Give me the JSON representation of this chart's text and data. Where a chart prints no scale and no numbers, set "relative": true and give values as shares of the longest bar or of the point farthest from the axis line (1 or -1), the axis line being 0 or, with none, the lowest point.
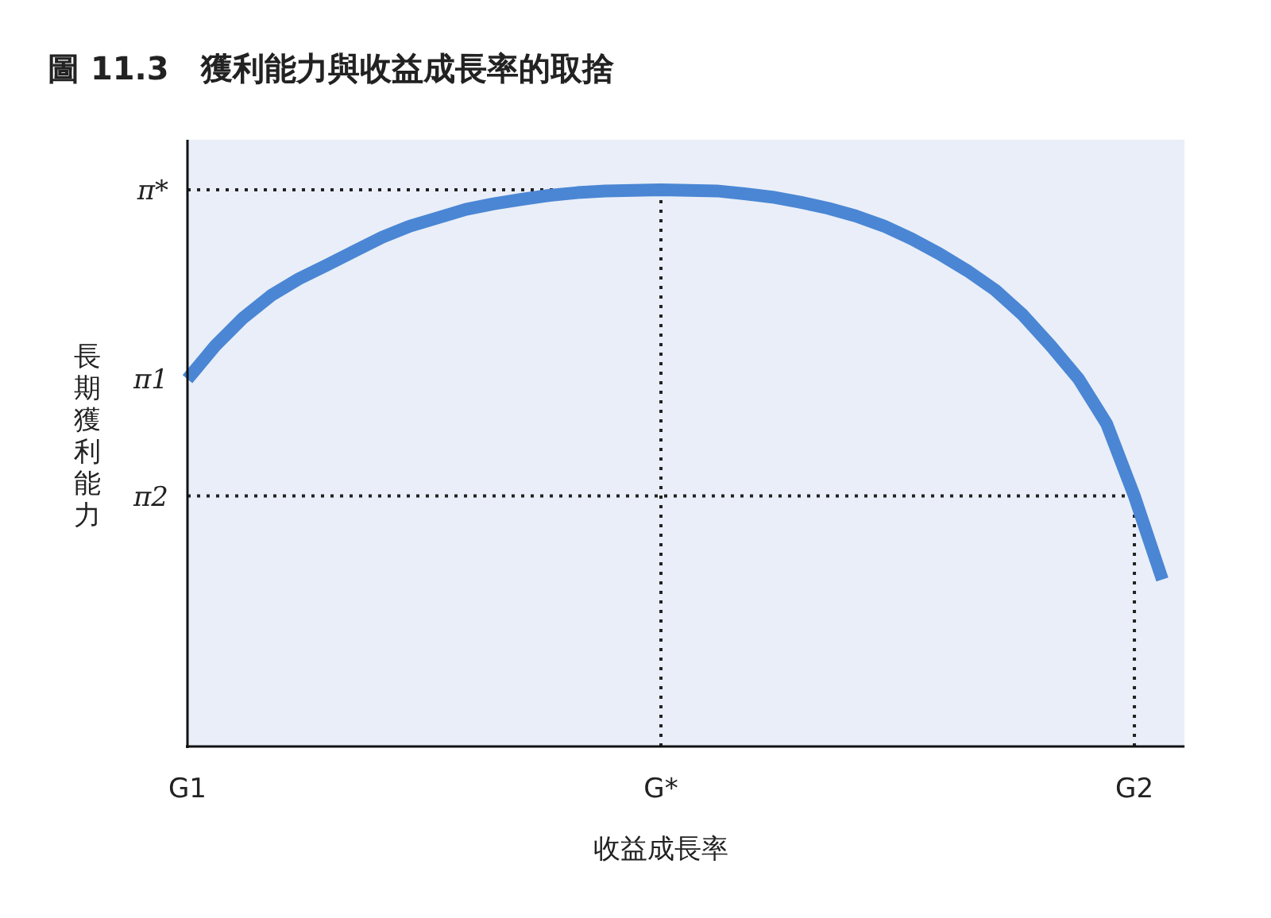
{
  "chart_data": {
    "type": "line",
    "title": "圖 11.3　獲利能力與收益成長率的取捨",
    "xlabel": "收益成長率",
    "ylabel": "長期獲利能力",
    "relative": true,
    "categories": [
      "G1",
      null,
      null,
      null,
      null,
      null,
      null,
      null,
      null,
      null,
      null,
      null,
      null,
      null,
      null,
      null,
      null,
      "G*",
      null,
      null,
      null,
      null,
      null,
      null,
      null,
      null,
      null,
      null,
      null,
      null,
      null,
      null,
      null,
      null,
      "G2",
      null
    ],
    "series": [
      {
        "color": "#4a86d4",
        "values": [
          0.66,
          0.72,
          0.77,
          0.81,
          0.84,
          0.865,
          0.89,
          0.915,
          0.935,
          0.95,
          0.965,
          0.975,
          0.983,
          0.99,
          0.995,
          0.998,
          0.999,
          1.0,
          0.999,
          0.998,
          0.993,
          0.987,
          0.978,
          0.967,
          0.953,
          0.935,
          0.912,
          0.885,
          0.855,
          0.82,
          0.775,
          0.72,
          0.66,
          0.58,
          0.45,
          0.3
        ]
      }
    ],
    "annotations": [
      {
        "text": "π1",
        "x": "G1",
        "y": 0.66
      }
    ],
    "ref_lines": [
      {
        "axis": "y",
        "value": 1.0,
        "label": "π*",
        "color": "#222222",
        "line_style": "dotted"
      },
      {
        "axis": "y",
        "value": 0.45,
        "label": "π2",
        "color": "#222222",
        "line_style": "dotted"
      },
      {
        "axis": "x",
        "value": "G*",
        "color": "#222222",
        "line_style": "dotted"
      },
      {
        "axis": "x",
        "value": "G2",
        "color": "#222222",
        "line_style": "dotted"
      }
    ]
  }
}
